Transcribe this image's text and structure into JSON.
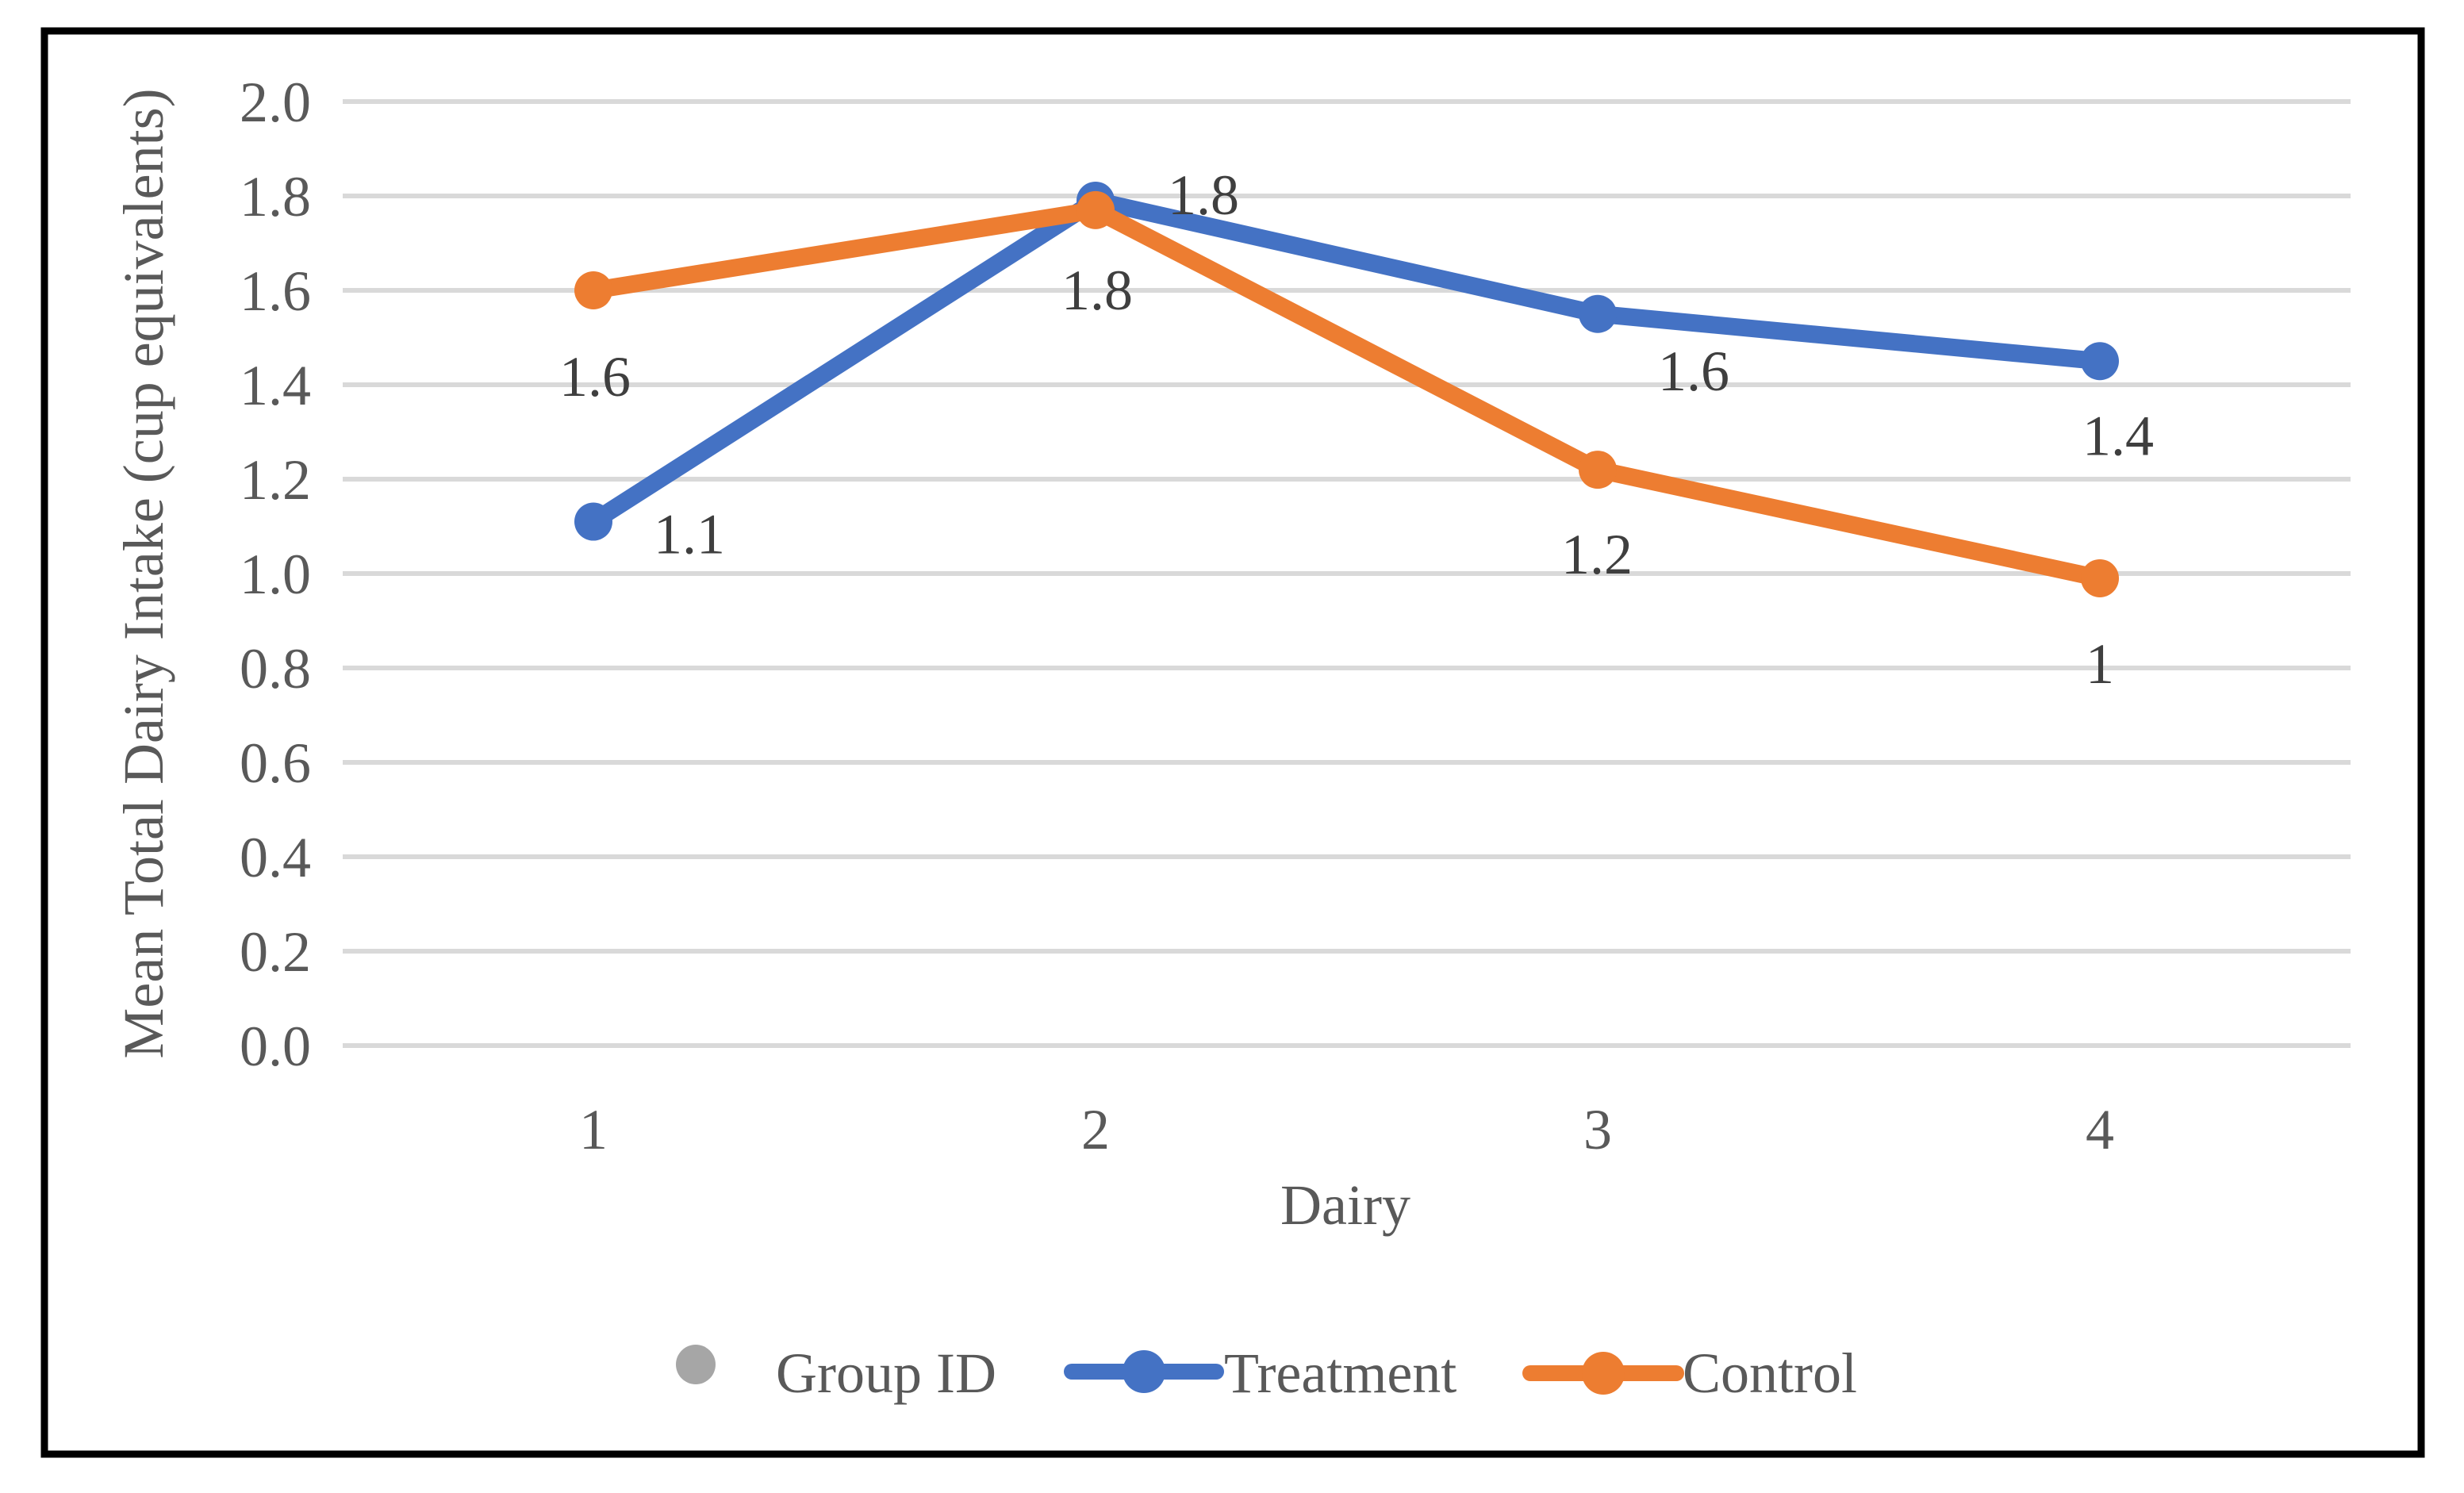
{
  "figure": {
    "background_color": "#FFFFFF",
    "border_color": "#000000"
  },
  "chart_data": {
    "type": "line",
    "title": "",
    "xlabel": "Dairy",
    "ylabel": "Mean Total Dairy Intake (cup equivalents)",
    "categories": [
      "1",
      "2",
      "3",
      "4"
    ],
    "ylim": [
      0.0,
      2.0
    ],
    "ytick_step": 0.2,
    "yticks": [
      "0.0",
      "0.2",
      "0.4",
      "0.6",
      "0.8",
      "1.0",
      "1.2",
      "1.4",
      "1.6",
      "1.8",
      "2.0"
    ],
    "grid": "horizontal",
    "gridline_color": "#D9D9D9",
    "axis_text_color": "#595959",
    "data_label_color": "#3F3F3F",
    "legend_position": "bottom",
    "series": [
      {
        "name": "Group ID",
        "color": "#A6A6A6",
        "marker": "circle",
        "line": false,
        "values": [],
        "labels": []
      },
      {
        "name": "Treatment",
        "color": "#4472C4",
        "marker": "circle",
        "line": true,
        "values": [
          1.11,
          1.79,
          1.55,
          1.45
        ],
        "labels": [
          "1.1",
          "1.8",
          "1.6",
          "1.4"
        ]
      },
      {
        "name": "Control",
        "color": "#ED7D31",
        "marker": "circle",
        "line": true,
        "values": [
          1.6,
          1.77,
          1.22,
          0.99
        ],
        "labels": [
          "1.6",
          "1.8",
          "1.2",
          "1"
        ]
      }
    ]
  }
}
